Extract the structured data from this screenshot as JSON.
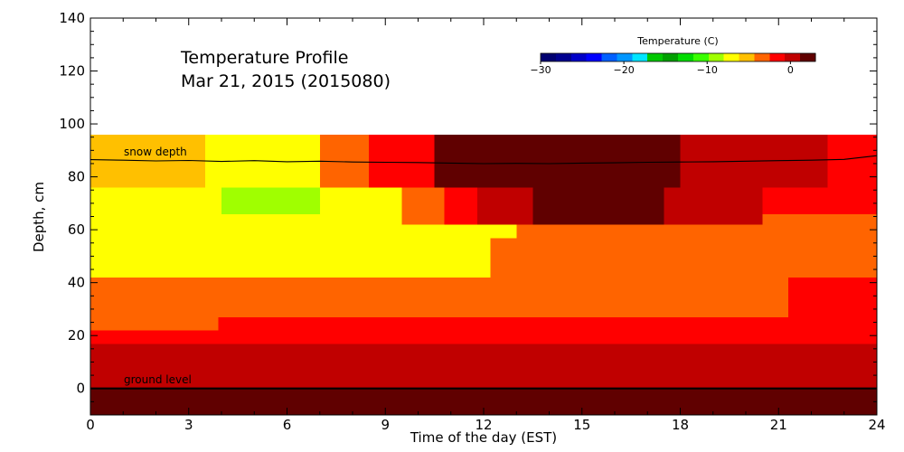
{
  "chart_data": {
    "type": "heatmap",
    "title": "Temperature Profile",
    "subtitle": "Mar 21, 2015 (2015080)",
    "xlabel": "Time of the day (EST)",
    "ylabel": "Depth, cm",
    "xlim": [
      0,
      24
    ],
    "ylim": [
      -10,
      140
    ],
    "x_ticks": [
      0,
      3,
      6,
      9,
      12,
      15,
      18,
      21,
      24
    ],
    "y_ticks": [
      0,
      20,
      40,
      60,
      80,
      100,
      120,
      140
    ],
    "colorbar": {
      "title": "Temperature (C)",
      "range": [
        -30,
        3
      ],
      "tick_values": [
        -30,
        -20,
        -10,
        0
      ],
      "tick_labels": [
        "−30",
        "−20",
        "−10",
        "0"
      ],
      "colors": [
        "#000070",
        "#00008f",
        "#0000c8",
        "#0000ff",
        "#0060ff",
        "#0096ff",
        "#00e5ff",
        "#00c800",
        "#00a000",
        "#00dc00",
        "#39ff00",
        "#a0ff00",
        "#ffff00",
        "#ffc000",
        "#ff6400",
        "#ff0000",
        "#c00000",
        "#600000"
      ]
    },
    "layers": [
      {
        "z_range": [
          -10,
          0
        ],
        "segments": [
          [
            0,
            24,
            2.0
          ]
        ]
      },
      {
        "z_range": [
          0,
          12
        ],
        "segments": [
          [
            0,
            24,
            0.5
          ]
        ]
      },
      {
        "z_range": [
          12,
          17
        ],
        "segments": [
          [
            0,
            24,
            0.0
          ]
        ]
      },
      {
        "z_range": [
          17,
          22
        ],
        "segments": [
          [
            0,
            21.7,
            -1.0
          ],
          [
            21.7,
            24,
            -1.0
          ]
        ]
      },
      {
        "z_range": [
          22,
          27
        ],
        "segments": [
          [
            0,
            3.9,
            -3.5
          ],
          [
            3.9,
            24,
            -1.0
          ]
        ]
      },
      {
        "z_range": [
          27,
          42
        ],
        "segments": [
          [
            0,
            21.3,
            -3.5
          ],
          [
            21.3,
            24,
            -1.0
          ]
        ]
      },
      {
        "z_range": [
          42,
          57
        ],
        "segments": [
          [
            0,
            3.5,
            -6.5
          ],
          [
            3.5,
            12.2,
            -6.5
          ],
          [
            12.2,
            24,
            -3.5
          ]
        ]
      },
      {
        "z_range": [
          57,
          66
        ],
        "segments": [
          [
            0,
            13.0,
            -6.5
          ],
          [
            13.0,
            24,
            -3.5
          ]
        ]
      },
      {
        "z_range": [
          66,
          76
        ],
        "segments": [
          [
            0,
            4.0,
            -6.5
          ],
          [
            4.0,
            7.0,
            -9.0
          ],
          [
            7.0,
            9.5,
            -6.5
          ],
          [
            9.5,
            12.2,
            -3.5
          ],
          [
            12.2,
            17.7,
            -3.5
          ],
          [
            17.7,
            24,
            -1.0
          ]
        ]
      },
      {
        "z_range": [
          76,
          96
        ],
        "segments": [
          [
            0,
            3.5,
            -5.0
          ],
          [
            3.5,
            7.0,
            -6.5
          ],
          [
            7.0,
            8.5,
            -4.0
          ],
          [
            8.5,
            10.5,
            -1.0
          ],
          [
            10.5,
            15.5,
            2.8
          ],
          [
            15.5,
            17.0,
            2.2
          ],
          [
            17.0,
            18.0,
            1.5
          ],
          [
            18.0,
            20.0,
            0.5
          ],
          [
            20.0,
            22.5,
            -0.5
          ],
          [
            22.5,
            24,
            -1.0
          ]
        ]
      },
      {
        "z_range": [
          62,
          76
        ],
        "segments": [
          [
            9.5,
            10.8,
            -4.0
          ],
          [
            10.8,
            11.8,
            -1.0
          ],
          [
            11.8,
            12.5,
            -0.5
          ],
          [
            12.5,
            13.5,
            0.5
          ],
          [
            13.5,
            17.5,
            1.5
          ],
          [
            17.5,
            19.0,
            0.5
          ],
          [
            19.0,
            20.5,
            -0.5
          ]
        ]
      }
    ],
    "series": [
      {
        "name": "snow depth",
        "x": [
          0,
          1,
          2,
          3,
          4,
          5,
          6,
          7,
          8,
          9,
          10,
          11,
          12,
          13,
          14,
          15,
          16,
          17,
          18,
          19,
          20,
          21,
          22,
          23,
          24
        ],
        "y": [
          86.5,
          86.3,
          86.0,
          86.2,
          85.8,
          86.1,
          85.7,
          85.9,
          85.6,
          85.5,
          85.4,
          85.2,
          85.0,
          85.1,
          85.0,
          85.2,
          85.3,
          85.5,
          85.6,
          85.7,
          85.9,
          86.1,
          86.3,
          86.6,
          88.0
        ]
      },
      {
        "name": "ground level",
        "x": [
          0,
          24
        ],
        "y": [
          0,
          0
        ]
      }
    ],
    "annotations": [
      "snow depth",
      "ground level"
    ]
  }
}
